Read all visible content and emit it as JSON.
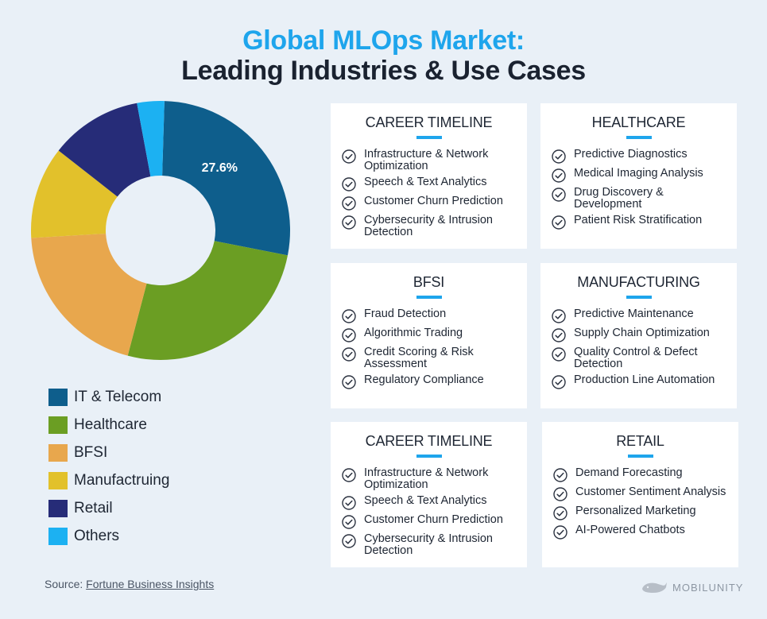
{
  "header": {
    "title_line1": "Global MLOps Market:",
    "title_line2": "Leading Industries & Use Cases"
  },
  "chart_data": {
    "type": "pie",
    "variant": "donut",
    "labels": [
      "IT & Telecom",
      "Healthcare",
      "BFSI",
      "Manufactruing",
      "Retail",
      "Others"
    ],
    "values": [
      27.6,
      26,
      20,
      11.5,
      11.5,
      3.4
    ],
    "colors": [
      "#0e5e8c",
      "#6b9e23",
      "#e8a74d",
      "#e2c12b",
      "#262c78",
      "#1cb1f2"
    ],
    "data_labels": [
      {
        "slice": "IT & Telecom",
        "text": "27.6%"
      }
    ],
    "legend_position": "bottom-left"
  },
  "legend": {
    "items": [
      {
        "label": "IT & Telecom",
        "color": "#0e5e8c"
      },
      {
        "label": "Healthcare",
        "color": "#6b9e23"
      },
      {
        "label": "BFSI",
        "color": "#e8a74d"
      },
      {
        "label": "Manufactruing",
        "color": "#e2c12b"
      },
      {
        "label": "Retail",
        "color": "#262c78"
      },
      {
        "label": "Others",
        "color": "#1cb1f2"
      }
    ]
  },
  "cards": [
    {
      "title": "CAREER TIMELINE",
      "items": [
        "Infrastructure & Network Optimization",
        "Speech & Text Analytics",
        "Customer Churn Prediction",
        "Cybersecurity & Intrusion Detection"
      ]
    },
    {
      "title": "HEALTHCARE",
      "items": [
        "Predictive Diagnostics",
        "Medical Imaging Analysis",
        "Drug Discovery & Development",
        "Patient Risk Stratification"
      ]
    },
    {
      "title": "BFSI",
      "items": [
        "Fraud Detection",
        "Algorithmic Trading",
        "Credit Scoring & Risk Assessment",
        "Regulatory Compliance"
      ]
    },
    {
      "title": "MANUFACTURING",
      "items": [
        "Predictive Maintenance",
        "Supply Chain Optimization",
        "Quality Control & Defect Detection",
        "Production Line Automation"
      ]
    },
    {
      "title": "CAREER TIMELINE",
      "items": [
        "Infrastructure & Network Optimization",
        "Speech & Text Analytics",
        "Customer Churn Prediction",
        "Cybersecurity & Intrusion Detection"
      ]
    },
    {
      "title": "RETAIL",
      "items": [
        "Demand Forecasting",
        "Customer Sentiment Analysis",
        "Personalized Marketing",
        "AI-Powered Chatbots"
      ]
    }
  ],
  "footer": {
    "source_prefix": "Source: ",
    "source_link": "Fortune Business Insights",
    "brand": "MOBILUNITY"
  },
  "icons": {
    "check": "check-circle-icon",
    "brand": "whale-logo-icon"
  }
}
